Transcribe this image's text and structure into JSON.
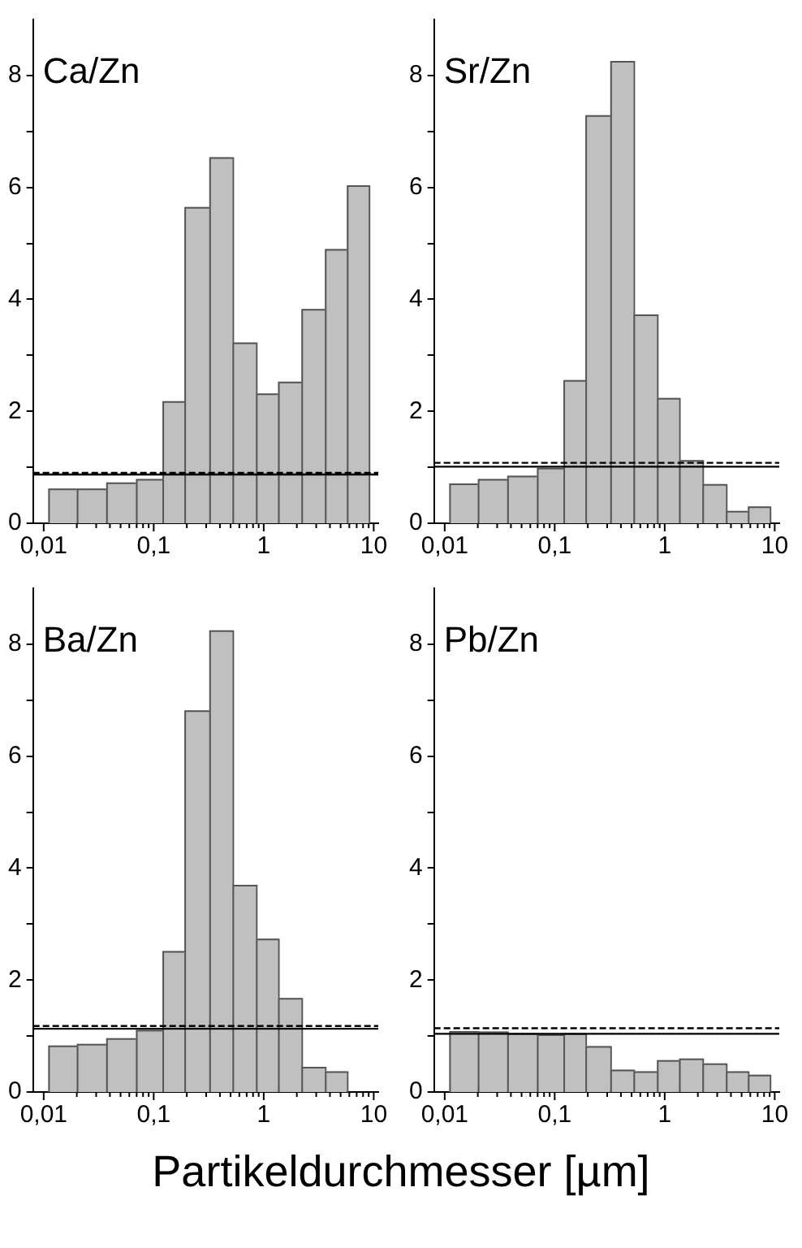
{
  "chart_data": [
    {
      "type": "histogram",
      "title": "Ca/Zn",
      "bins": [
        0.011,
        0.02,
        0.037,
        0.069,
        0.12,
        0.19,
        0.32,
        0.52,
        0.85,
        1.35,
        2.2,
        3.6,
        5.7,
        9
      ],
      "values": [
        0.62,
        0.62,
        0.73,
        0.79,
        2.18,
        5.65,
        6.54,
        3.23,
        2.32,
        2.53,
        3.83,
        4.9,
        6.04
      ],
      "color": "#c0c0c0",
      "xlim": [
        0.008,
        11
      ],
      "xticks": [
        {
          "value": 0.01,
          "label": "0,01"
        },
        {
          "value": 0.02,
          "label": null
        },
        {
          "value": 0.03,
          "label": null
        },
        {
          "value": 0.04,
          "label": null
        },
        {
          "value": 0.05,
          "label": null
        },
        {
          "value": 0.06,
          "label": null
        },
        {
          "value": 0.07,
          "label": null
        },
        {
          "value": 0.08,
          "label": null
        },
        {
          "value": 0.09,
          "label": null
        },
        {
          "value": 0.1,
          "label": "0,1"
        },
        {
          "value": 0.2,
          "label": null
        },
        {
          "value": 0.3,
          "label": null
        },
        {
          "value": 0.4,
          "label": null
        },
        {
          "value": 0.5,
          "label": null
        },
        {
          "value": 0.6,
          "label": null
        },
        {
          "value": 0.7,
          "label": null
        },
        {
          "value": 0.8,
          "label": null
        },
        {
          "value": 0.9,
          "label": null
        },
        {
          "value": 1,
          "label": "1"
        },
        {
          "value": 2,
          "label": null
        },
        {
          "value": 3,
          "label": null
        },
        {
          "value": 4,
          "label": null
        },
        {
          "value": 5,
          "label": null
        },
        {
          "value": 6,
          "label": null
        },
        {
          "value": 7,
          "label": null
        },
        {
          "value": 8,
          "label": null
        },
        {
          "value": 9,
          "label": null
        },
        {
          "value": 10,
          "label": "10"
        }
      ],
      "ylim": [
        0,
        9
      ],
      "yticks": [
        0,
        {
          "value": 1,
          "label": null
        },
        2,
        {
          "value": 3,
          "label": null
        },
        4,
        {
          "value": 5,
          "label": null
        },
        6,
        {
          "value": 7,
          "label": null
        },
        8
      ],
      "log": "x",
      "ref_lines": [
        {
          "axis": "y",
          "value": 0.87,
          "color": "#000000",
          "line_style": "solid"
        },
        {
          "axis": "y",
          "value": 0.9,
          "color": "#000000",
          "line_style": "dashed"
        }
      ]
    },
    {
      "type": "histogram",
      "title": "Sr/Zn",
      "bins": [
        0.011,
        0.02,
        0.037,
        0.069,
        0.12,
        0.19,
        0.32,
        0.52,
        0.85,
        1.35,
        2.2,
        3.6,
        5.7,
        9
      ],
      "values": [
        0.71,
        0.79,
        0.85,
        0.99,
        2.56,
        7.29,
        8.26,
        3.73,
        2.24,
        1.13,
        0.7,
        0.22,
        0.3
      ],
      "color": "#c0c0c0",
      "xlim": [
        0.008,
        11
      ],
      "xticks": [
        {
          "value": 0.01,
          "label": "0,01"
        },
        {
          "value": 0.02,
          "label": null
        },
        {
          "value": 0.03,
          "label": null
        },
        {
          "value": 0.04,
          "label": null
        },
        {
          "value": 0.05,
          "label": null
        },
        {
          "value": 0.06,
          "label": null
        },
        {
          "value": 0.07,
          "label": null
        },
        {
          "value": 0.08,
          "label": null
        },
        {
          "value": 0.09,
          "label": null
        },
        {
          "value": 0.1,
          "label": "0,1"
        },
        {
          "value": 0.2,
          "label": null
        },
        {
          "value": 0.3,
          "label": null
        },
        {
          "value": 0.4,
          "label": null
        },
        {
          "value": 0.5,
          "label": null
        },
        {
          "value": 0.6,
          "label": null
        },
        {
          "value": 0.7,
          "label": null
        },
        {
          "value": 0.8,
          "label": null
        },
        {
          "value": 0.9,
          "label": null
        },
        {
          "value": 1,
          "label": "1"
        },
        {
          "value": 2,
          "label": null
        },
        {
          "value": 3,
          "label": null
        },
        {
          "value": 4,
          "label": null
        },
        {
          "value": 5,
          "label": null
        },
        {
          "value": 6,
          "label": null
        },
        {
          "value": 7,
          "label": null
        },
        {
          "value": 8,
          "label": null
        },
        {
          "value": 9,
          "label": null
        },
        {
          "value": 10,
          "label": "10"
        }
      ],
      "ylim": [
        0,
        9
      ],
      "yticks": [
        0,
        {
          "value": 1,
          "label": null
        },
        2,
        {
          "value": 3,
          "label": null
        },
        4,
        {
          "value": 5,
          "label": null
        },
        6,
        {
          "value": 7,
          "label": null
        },
        8
      ],
      "log": "x",
      "ref_lines": [
        {
          "axis": "y",
          "value": 1.01,
          "color": "#000000",
          "line_style": "solid"
        },
        {
          "axis": "y",
          "value": 1.08,
          "color": "#000000",
          "line_style": "dashed"
        }
      ]
    },
    {
      "type": "histogram",
      "title": "Ba/Zn",
      "xlabel": "Partikeldurchmesser [µm]",
      "bins": [
        0.011,
        0.02,
        0.037,
        0.069,
        0.12,
        0.19,
        0.32,
        0.52,
        0.85,
        1.35,
        2.2,
        3.6,
        5.7
      ],
      "values": [
        0.83,
        0.86,
        0.96,
        1.11,
        2.52,
        6.82,
        8.25,
        3.7,
        2.74,
        1.68,
        0.45,
        0.37
      ],
      "color": "#c0c0c0",
      "xlim": [
        0.008,
        11
      ],
      "xticks": [
        {
          "value": 0.01,
          "label": "0,01"
        },
        {
          "value": 0.02,
          "label": null
        },
        {
          "value": 0.03,
          "label": null
        },
        {
          "value": 0.04,
          "label": null
        },
        {
          "value": 0.05,
          "label": null
        },
        {
          "value": 0.06,
          "label": null
        },
        {
          "value": 0.07,
          "label": null
        },
        {
          "value": 0.08,
          "label": null
        },
        {
          "value": 0.09,
          "label": null
        },
        {
          "value": 0.1,
          "label": "0,1"
        },
        {
          "value": 0.2,
          "label": null
        },
        {
          "value": 0.3,
          "label": null
        },
        {
          "value": 0.4,
          "label": null
        },
        {
          "value": 0.5,
          "label": null
        },
        {
          "value": 0.6,
          "label": null
        },
        {
          "value": 0.7,
          "label": null
        },
        {
          "value": 0.8,
          "label": null
        },
        {
          "value": 0.9,
          "label": null
        },
        {
          "value": 1,
          "label": "1"
        },
        {
          "value": 2,
          "label": null
        },
        {
          "value": 3,
          "label": null
        },
        {
          "value": 4,
          "label": null
        },
        {
          "value": 5,
          "label": null
        },
        {
          "value": 6,
          "label": null
        },
        {
          "value": 7,
          "label": null
        },
        {
          "value": 8,
          "label": null
        },
        {
          "value": 9,
          "label": null
        },
        {
          "value": 10,
          "label": "10"
        }
      ],
      "ylim": [
        0,
        9
      ],
      "yticks": [
        0,
        {
          "value": 1,
          "label": null
        },
        2,
        {
          "value": 3,
          "label": null
        },
        4,
        {
          "value": 5,
          "label": null
        },
        6,
        {
          "value": 7,
          "label": null
        },
        8
      ],
      "log": "x",
      "ref_lines": [
        {
          "axis": "y",
          "value": 1.13,
          "color": "#000000",
          "line_style": "solid"
        },
        {
          "axis": "y",
          "value": 1.18,
          "color": "#000000",
          "line_style": "dashed"
        }
      ]
    },
    {
      "type": "histogram",
      "title": "Pb/Zn",
      "bins": [
        0.011,
        0.02,
        0.037,
        0.069,
        0.12,
        0.19,
        0.32,
        0.52,
        0.85,
        1.35,
        2.2,
        3.6,
        5.7,
        9
      ],
      "values": [
        1.09,
        1.08,
        1.05,
        1.03,
        1.05,
        0.82,
        0.4,
        0.37,
        0.57,
        0.6,
        0.51,
        0.37,
        0.31
      ],
      "color": "#c0c0c0",
      "xlim": [
        0.008,
        11
      ],
      "xticks": [
        {
          "value": 0.01,
          "label": "0,01"
        },
        {
          "value": 0.02,
          "label": null
        },
        {
          "value": 0.03,
          "label": null
        },
        {
          "value": 0.04,
          "label": null
        },
        {
          "value": 0.05,
          "label": null
        },
        {
          "value": 0.06,
          "label": null
        },
        {
          "value": 0.07,
          "label": null
        },
        {
          "value": 0.08,
          "label": null
        },
        {
          "value": 0.09,
          "label": null
        },
        {
          "value": 0.1,
          "label": "0,1"
        },
        {
          "value": 0.2,
          "label": null
        },
        {
          "value": 0.3,
          "label": null
        },
        {
          "value": 0.4,
          "label": null
        },
        {
          "value": 0.5,
          "label": null
        },
        {
          "value": 0.6,
          "label": null
        },
        {
          "value": 0.7,
          "label": null
        },
        {
          "value": 0.8,
          "label": null
        },
        {
          "value": 0.9,
          "label": null
        },
        {
          "value": 1,
          "label": "1"
        },
        {
          "value": 2,
          "label": null
        },
        {
          "value": 3,
          "label": null
        },
        {
          "value": 4,
          "label": null
        },
        {
          "value": 5,
          "label": null
        },
        {
          "value": 6,
          "label": null
        },
        {
          "value": 7,
          "label": null
        },
        {
          "value": 8,
          "label": null
        },
        {
          "value": 9,
          "label": null
        },
        {
          "value": 10,
          "label": "10"
        }
      ],
      "ylim": [
        0,
        9
      ],
      "yticks": [
        0,
        {
          "value": 1,
          "label": null
        },
        2,
        {
          "value": 3,
          "label": null
        },
        4,
        {
          "value": 5,
          "label": null
        },
        6,
        {
          "value": 7,
          "label": null
        },
        8
      ],
      "log": "x",
      "ref_lines": [
        {
          "axis": "y",
          "value": 1.04,
          "color": "#000000",
          "line_style": "solid"
        },
        {
          "axis": "y",
          "value": 1.14,
          "color": "#000000",
          "line_style": "dashed"
        }
      ]
    }
  ]
}
